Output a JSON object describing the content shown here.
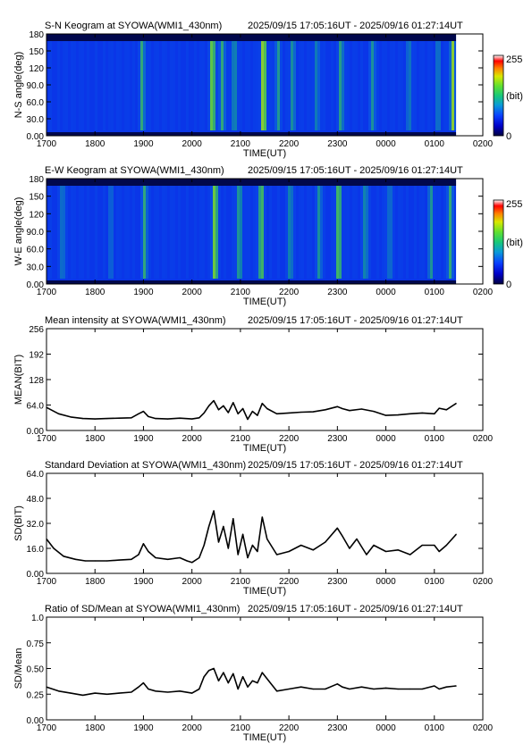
{
  "header_suffix": "2025/09/15 17:05:16UT - 2025/09/16 01:27:14UT",
  "x_ticks": [
    "1700",
    "1800",
    "1900",
    "2000",
    "2100",
    "2200",
    "2300",
    "0000",
    "0100",
    "0200"
  ],
  "time_label": "TIME(UT)",
  "colorbar": {
    "max_label": "255",
    "unit_label": "(bit)",
    "min_label": "0"
  },
  "chart_data": [
    {
      "type": "heatmap",
      "title": "S-N Keogram at SYOWA(WMI1_430nm)",
      "xlabel": "TIME(UT)",
      "ylabel": "N-S angle(deg)",
      "ylim": [
        0,
        180
      ],
      "yticks": [
        "0.00",
        "30.0",
        "60.0",
        "90.0",
        "120",
        "150",
        "180"
      ],
      "xlim_hours": [
        17,
        26
      ],
      "data_end_hour": 25.45,
      "zlim": [
        0,
        255
      ],
      "colormap": [
        "#000040",
        "#0000c8",
        "#0a40ff",
        "#0a9ad8",
        "#18c878",
        "#60e030",
        "#d8e800",
        "#ff8000",
        "#ff0000",
        "#ffffff"
      ],
      "features": [
        {
          "time_hour": 18.95,
          "strength": 0.6,
          "angle_range": [
            100,
            170
          ]
        },
        {
          "time_hour": 20.4,
          "strength": 0.9,
          "angle_range": [
            10,
            100
          ]
        },
        {
          "time_hour": 20.6,
          "strength": 0.6,
          "angle_range": [
            20,
            170
          ]
        },
        {
          "time_hour": 20.85,
          "strength": 0.5,
          "angle_range": [
            20,
            170
          ]
        },
        {
          "time_hour": 21.45,
          "strength": 1.0,
          "angle_range": [
            10,
            170
          ]
        },
        {
          "time_hour": 21.75,
          "strength": 0.5,
          "angle_range": [
            15,
            170
          ]
        },
        {
          "time_hour": 22.05,
          "strength": 0.5,
          "angle_range": [
            15,
            170
          ]
        },
        {
          "time_hour": 22.55,
          "strength": 0.4,
          "angle_range": [
            15,
            170
          ]
        },
        {
          "time_hour": 23.05,
          "strength": 0.6,
          "angle_range": [
            15,
            170
          ]
        },
        {
          "time_hour": 23.7,
          "strength": 0.5,
          "angle_range": [
            15,
            170
          ]
        },
        {
          "time_hour": 24.45,
          "strength": 0.4,
          "angle_range": [
            15,
            170
          ]
        },
        {
          "time_hour": 25.05,
          "strength": 0.4,
          "angle_range": [
            15,
            170
          ]
        },
        {
          "time_hour": 25.35,
          "strength": 0.8,
          "angle_range": [
            15,
            170
          ]
        }
      ]
    },
    {
      "type": "heatmap",
      "title": "E-W Keogram at SYOWA(WMI1_430nm)",
      "xlabel": "TIME(UT)",
      "ylabel": "W-E angle(deg)",
      "ylim": [
        0,
        180
      ],
      "yticks": [
        "0.00",
        "30.0",
        "60.0",
        "90.0",
        "120",
        "150",
        "180"
      ],
      "xlim_hours": [
        17,
        26
      ],
      "data_end_hour": 25.45,
      "zlim": [
        0,
        255
      ],
      "colormap": [
        "#000040",
        "#0000c8",
        "#0a40ff",
        "#0a9ad8",
        "#18c878",
        "#60e030",
        "#d8e800",
        "#ff8000",
        "#ff0000",
        "#ffffff"
      ],
      "features": [
        {
          "time_hour": 17.3,
          "strength": 0.4,
          "angle_range": [
            20,
            170
          ]
        },
        {
          "time_hour": 18.3,
          "strength": 0.3,
          "angle_range": [
            20,
            170
          ]
        },
        {
          "time_hour": 19.0,
          "strength": 0.6,
          "angle_range": [
            10,
            170
          ]
        },
        {
          "time_hour": 20.45,
          "strength": 0.9,
          "angle_range": [
            10,
            170
          ]
        },
        {
          "time_hour": 20.95,
          "strength": 0.6,
          "angle_range": [
            10,
            170
          ]
        },
        {
          "time_hour": 21.4,
          "strength": 0.8,
          "angle_range": [
            10,
            170
          ]
        },
        {
          "time_hour": 22.0,
          "strength": 0.5,
          "angle_range": [
            10,
            170
          ]
        },
        {
          "time_hour": 22.6,
          "strength": 0.5,
          "angle_range": [
            10,
            170
          ]
        },
        {
          "time_hour": 23.0,
          "strength": 0.8,
          "angle_range": [
            10,
            170
          ]
        },
        {
          "time_hour": 23.55,
          "strength": 0.5,
          "angle_range": [
            10,
            170
          ]
        },
        {
          "time_hour": 24.05,
          "strength": 0.4,
          "angle_range": [
            10,
            170
          ]
        },
        {
          "time_hour": 24.9,
          "strength": 0.5,
          "angle_range": [
            10,
            170
          ]
        },
        {
          "time_hour": 25.3,
          "strength": 0.6,
          "angle_range": [
            10,
            170
          ]
        }
      ]
    },
    {
      "type": "line",
      "title": "Mean intensity at SYOWA(WMI1_430nm)",
      "xlabel": "TIME(UT)",
      "ylabel": "MEAN(BIT)",
      "ylim": [
        0,
        256
      ],
      "yticks": [
        "0.00",
        "64.0",
        "128",
        "192",
        "256"
      ],
      "xlim_hours": [
        17,
        26
      ],
      "x_hours": [
        17.0,
        17.25,
        17.5,
        17.75,
        18.0,
        18.25,
        18.5,
        18.75,
        18.9,
        19.0,
        19.1,
        19.25,
        19.5,
        19.75,
        20.0,
        20.15,
        20.25,
        20.35,
        20.45,
        20.55,
        20.65,
        20.75,
        20.85,
        20.95,
        21.05,
        21.15,
        21.25,
        21.35,
        21.45,
        21.55,
        21.75,
        22.0,
        22.25,
        22.5,
        22.75,
        23.0,
        23.1,
        23.25,
        23.5,
        23.75,
        24.0,
        24.25,
        24.5,
        24.75,
        25.0,
        25.1,
        25.25,
        25.45
      ],
      "values": [
        58,
        42,
        34,
        30,
        29,
        30,
        31,
        32,
        42,
        48,
        35,
        30,
        29,
        31,
        29,
        32,
        44,
        62,
        75,
        52,
        62,
        45,
        70,
        42,
        55,
        28,
        48,
        38,
        68,
        55,
        42,
        44,
        46,
        47,
        52,
        60,
        55,
        50,
        54,
        48,
        38,
        39,
        42,
        44,
        42,
        56,
        52,
        68
      ]
    },
    {
      "type": "line",
      "title": "Standard Deviation at SYOWA(WMI1_430nm)",
      "xlabel": "TIME(UT)",
      "ylabel": "SD(BIT)",
      "ylim": [
        0,
        64
      ],
      "yticks": [
        "0.00",
        "16.0",
        "32.0",
        "48.0",
        "64.0"
      ],
      "xlim_hours": [
        17,
        26
      ],
      "x_hours": [
        17.0,
        17.15,
        17.35,
        17.6,
        17.8,
        18.0,
        18.25,
        18.5,
        18.75,
        18.9,
        19.0,
        19.1,
        19.25,
        19.5,
        19.75,
        19.9,
        20.0,
        20.15,
        20.25,
        20.35,
        20.45,
        20.55,
        20.65,
        20.75,
        20.85,
        20.95,
        21.05,
        21.15,
        21.25,
        21.35,
        21.45,
        21.55,
        21.75,
        22.0,
        22.25,
        22.5,
        22.75,
        23.0,
        23.1,
        23.25,
        23.4,
        23.6,
        23.75,
        24.0,
        24.25,
        24.5,
        24.75,
        25.0,
        25.1,
        25.25,
        25.45
      ],
      "values": [
        22,
        16,
        11,
        9,
        8,
        8,
        8,
        8.5,
        9,
        12,
        19,
        14,
        10,
        9,
        10,
        8,
        7,
        10,
        18,
        30,
        40,
        20,
        30,
        16,
        35,
        12,
        25,
        10,
        18,
        14,
        36,
        22,
        12,
        14,
        18,
        15,
        20,
        29,
        24,
        16,
        22,
        12,
        18,
        14,
        15,
        12,
        18,
        18,
        14,
        18,
        25
      ]
    },
    {
      "type": "line",
      "title": "Ratio of SD/Mean at SYOWA(WMI1_430nm)",
      "xlabel": "TIME(UT)",
      "ylabel": "SD/Mean",
      "ylim": [
        0,
        1
      ],
      "yticks": [
        "0.00",
        "0.25",
        "0.50",
        "0.75",
        "1.0"
      ],
      "xlim_hours": [
        17,
        26
      ],
      "x_hours": [
        17.0,
        17.25,
        17.5,
        17.75,
        18.0,
        18.25,
        18.5,
        18.75,
        18.9,
        19.0,
        19.1,
        19.25,
        19.5,
        19.75,
        20.0,
        20.15,
        20.25,
        20.35,
        20.45,
        20.55,
        20.65,
        20.75,
        20.85,
        20.95,
        21.05,
        21.15,
        21.25,
        21.35,
        21.45,
        21.55,
        21.75,
        22.0,
        22.25,
        22.5,
        22.75,
        23.0,
        23.1,
        23.25,
        23.5,
        23.75,
        24.0,
        24.25,
        24.5,
        24.75,
        25.0,
        25.1,
        25.25,
        25.45
      ],
      "values": [
        0.32,
        0.28,
        0.26,
        0.24,
        0.26,
        0.25,
        0.26,
        0.27,
        0.32,
        0.36,
        0.3,
        0.28,
        0.27,
        0.28,
        0.26,
        0.3,
        0.42,
        0.48,
        0.5,
        0.38,
        0.46,
        0.36,
        0.45,
        0.3,
        0.42,
        0.32,
        0.38,
        0.36,
        0.46,
        0.4,
        0.28,
        0.3,
        0.32,
        0.3,
        0.3,
        0.35,
        0.32,
        0.3,
        0.32,
        0.3,
        0.31,
        0.3,
        0.3,
        0.3,
        0.33,
        0.3,
        0.32,
        0.33
      ]
    }
  ]
}
